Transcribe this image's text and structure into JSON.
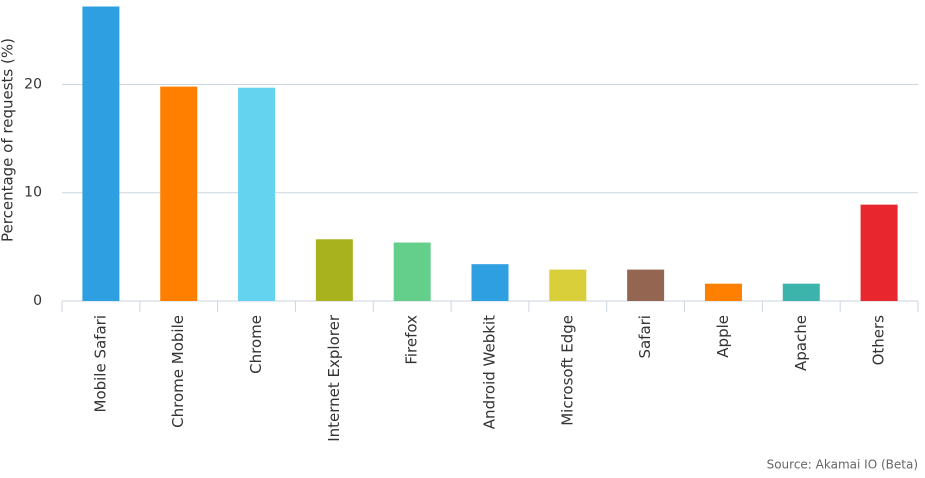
{
  "chart_data": {
    "type": "bar",
    "ylabel": "Percentage of requests (%)",
    "source": "Source: Akamai IO (Beta)",
    "categories": [
      "Mobile Safari",
      "Chrome Mobile",
      "Chrome",
      "Internet Explorer",
      "Firefox",
      "Android Webkit",
      "Microsoft Edge",
      "Safari",
      "Apple",
      "Apache",
      "Others"
    ],
    "values": [
      27.2,
      19.8,
      19.7,
      5.7,
      5.4,
      3.4,
      2.9,
      2.9,
      1.6,
      1.6,
      8.9
    ],
    "colors": [
      "#2e9fe0",
      "#ff7f00",
      "#63d3f0",
      "#a8b21f",
      "#63cf8a",
      "#2e9fe0",
      "#d9cf3a",
      "#946652",
      "#ff7f00",
      "#3cb3ab",
      "#e8262d"
    ],
    "ylim": [
      0,
      27.8
    ],
    "yticks": [
      0,
      10,
      20
    ],
    "grid": true
  }
}
